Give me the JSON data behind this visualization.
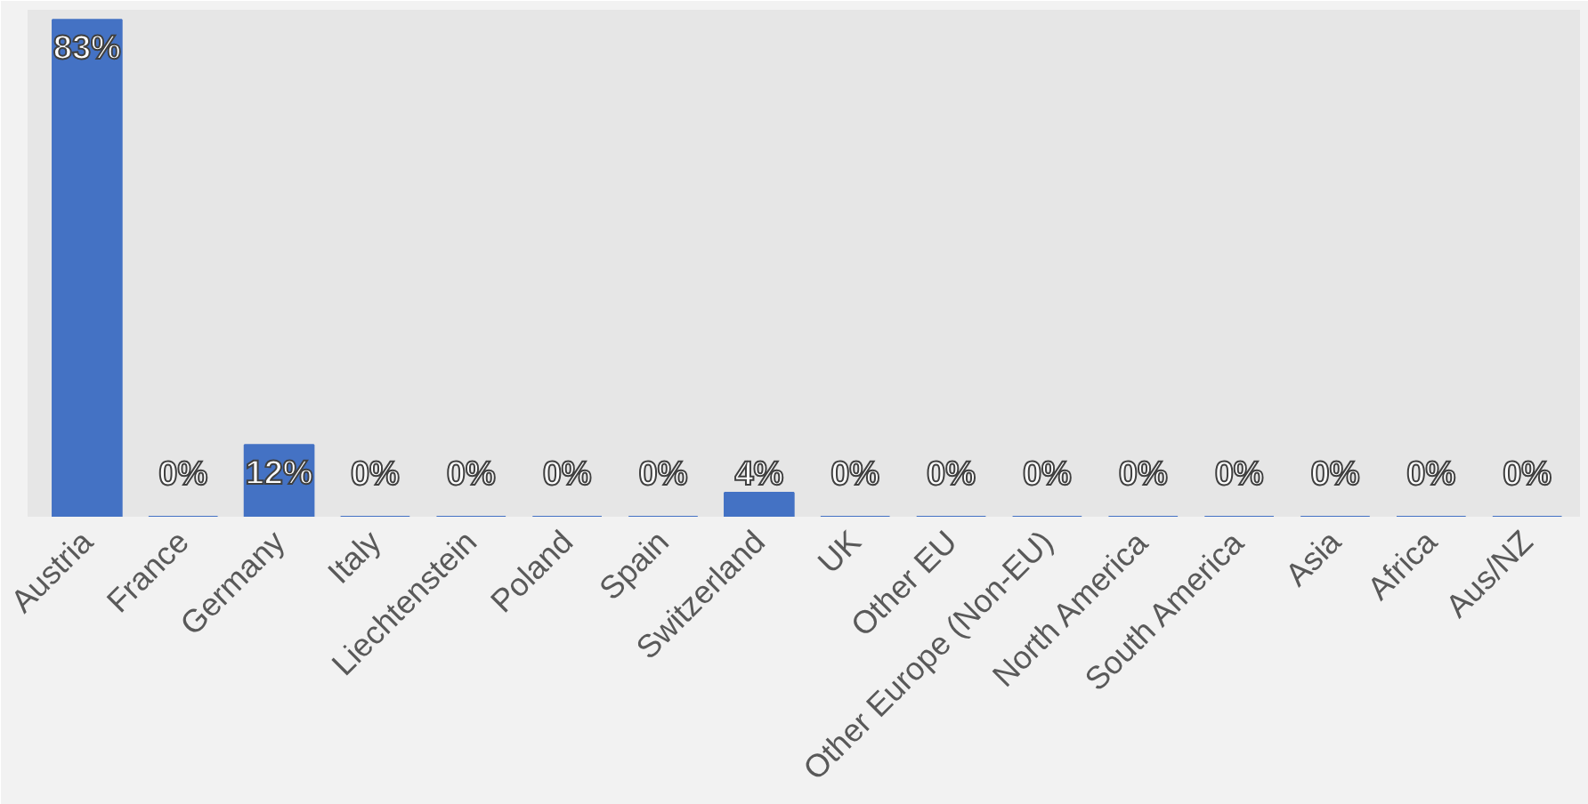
{
  "chart_data": {
    "type": "bar",
    "categories": [
      "Austria",
      "France",
      "Germany",
      "Italy",
      "Liechtenstein",
      "Poland",
      "Spain",
      "Switzerland",
      "UK",
      "Other EU",
      "Other Europe (Non-EU)",
      "North America",
      "South America",
      "Asia",
      "Africa",
      "Aus/NZ"
    ],
    "values": [
      83,
      0,
      12,
      0,
      0,
      0,
      0,
      4,
      0,
      0,
      0,
      0,
      0,
      0,
      0,
      0
    ],
    "value_labels": [
      "83%",
      "0%",
      "12%",
      "0%",
      "0%",
      "0%",
      "0%",
      "4%",
      "0%",
      "0%",
      "0%",
      "0%",
      "0%",
      "0%",
      "0%",
      "0%"
    ],
    "color": "#4472c4"
  }
}
